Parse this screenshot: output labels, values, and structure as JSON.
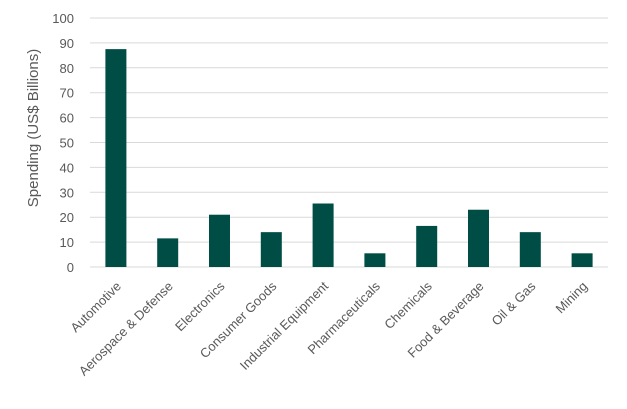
{
  "chart_data": {
    "type": "bar",
    "title": "",
    "xlabel": "",
    "ylabel": "Spending (US$ Billions)",
    "ylim": [
      0,
      100
    ],
    "yticks": [
      0,
      10,
      20,
      30,
      40,
      50,
      60,
      70,
      80,
      90,
      100
    ],
    "grid": true,
    "bar_color": "#004d46",
    "categories": [
      "Automotive",
      "Aerospace & Defense",
      "Electronics",
      "Consumer Goods",
      "Industrial Equipment",
      "Pharmaceuticals",
      "Chemicals",
      "Food & Beverage",
      "Oil & Gas",
      "Mining"
    ],
    "values": [
      87.5,
      11.5,
      21,
      14,
      25.5,
      5.5,
      16.5,
      23,
      14,
      5.5
    ]
  }
}
